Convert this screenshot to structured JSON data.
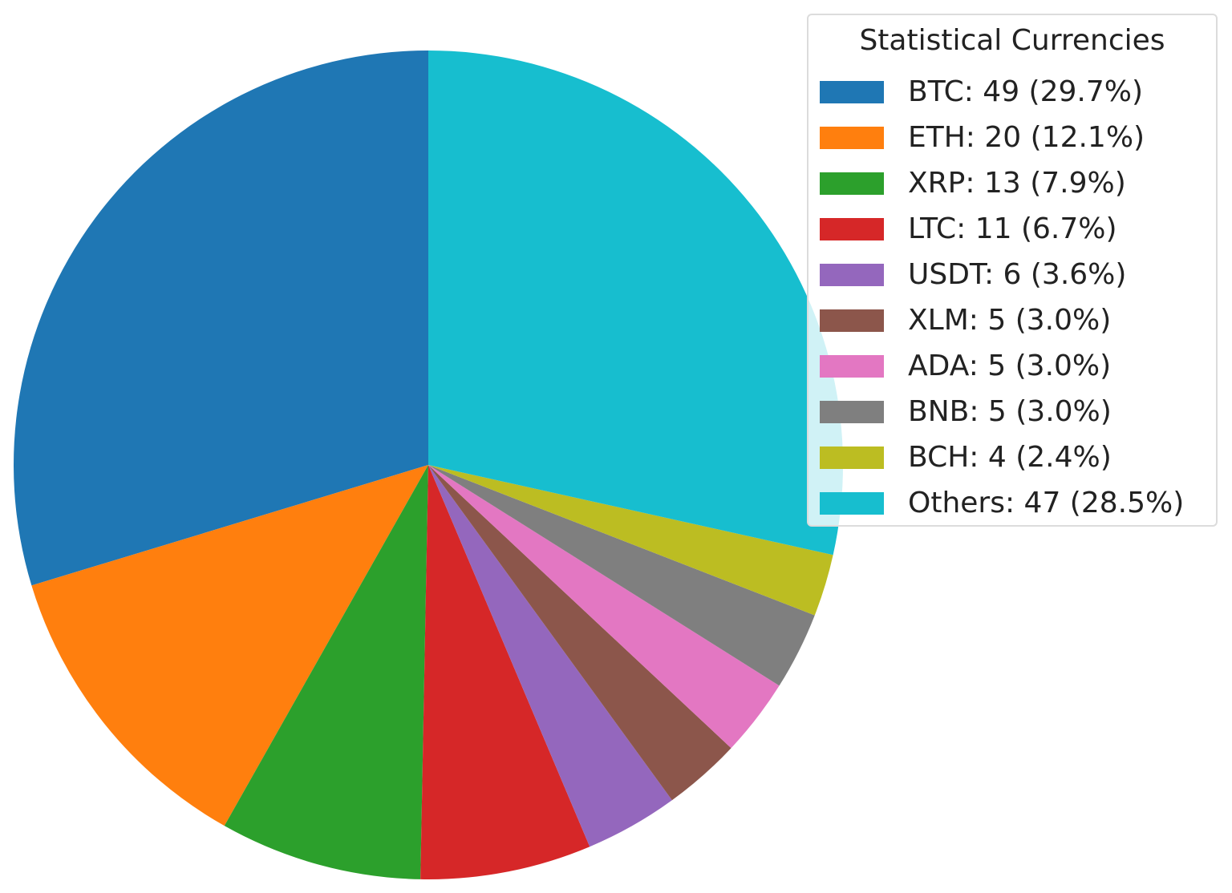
{
  "chart_data": {
    "type": "pie",
    "title": "",
    "legend_title": "Statistical Currencies",
    "legend_placement": "upper-right",
    "start_angle_deg": 90,
    "direction": "counterclockwise",
    "slices": [
      {
        "label": "BTC",
        "value": 49,
        "legend_text": "BTC: 49 (29.7%)",
        "color": "#1f77b4"
      },
      {
        "label": "ETH",
        "value": 20,
        "legend_text": "ETH: 20 (12.1%)",
        "color": "#ff7f0e"
      },
      {
        "label": "XRP",
        "value": 13,
        "legend_text": "XRP: 13 (7.9%)",
        "color": "#2ca02c"
      },
      {
        "label": "LTC",
        "value": 11,
        "legend_text": "LTC: 11 (6.7%)",
        "color": "#d62728"
      },
      {
        "label": "USDT",
        "value": 6,
        "legend_text": "USDT: 6 (3.6%)",
        "color": "#9467bd"
      },
      {
        "label": "XLM",
        "value": 5,
        "legend_text": "XLM: 5 (3.0%)",
        "color": "#8c564b"
      },
      {
        "label": "ADA",
        "value": 5,
        "legend_text": "ADA: 5 (3.0%)",
        "color": "#e377c2"
      },
      {
        "label": "BNB",
        "value": 5,
        "legend_text": "BNB: 5 (3.0%)",
        "color": "#7f7f7f"
      },
      {
        "label": "BCH",
        "value": 4,
        "legend_text": "BCH: 4 (2.4%)",
        "color": "#bcbd22"
      },
      {
        "label": "Others",
        "value": 47,
        "legend_text": "Others: 47 (28.5%)",
        "color": "#17becf"
      }
    ]
  }
}
